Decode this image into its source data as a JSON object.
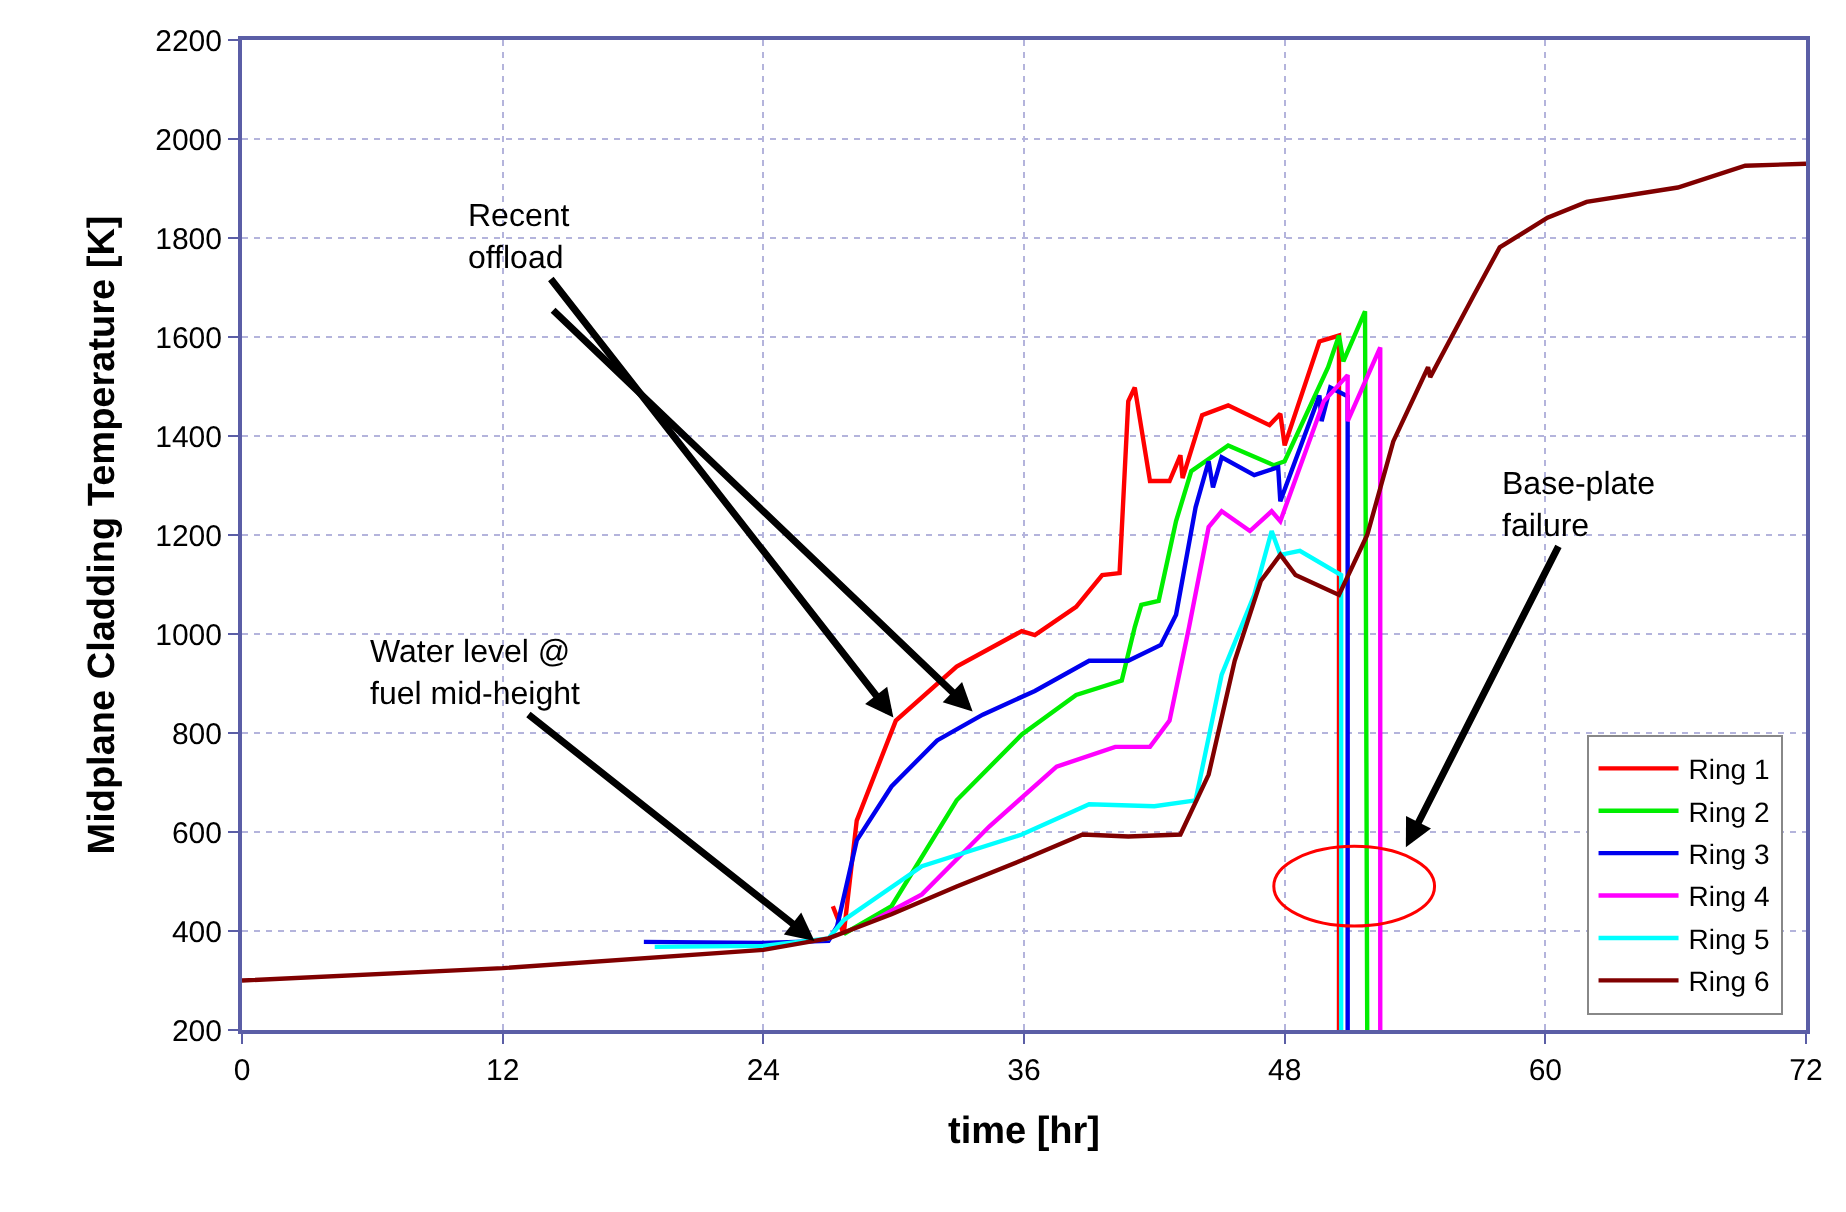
{
  "chart_data": {
    "type": "line",
    "xlabel": "time [hr]",
    "ylabel": "Midplane Cladding Temperature [K]",
    "xlim": [
      0,
      72
    ],
    "xticks": [
      0,
      12,
      24,
      36,
      48,
      60,
      72
    ],
    "ylim": [
      200,
      2200
    ],
    "yticks": [
      200,
      400,
      600,
      800,
      1000,
      1200,
      1400,
      1600,
      1800,
      2000,
      2200
    ],
    "grid": true,
    "legend": "bottom right",
    "line_style": "solid",
    "marker": "none",
    "series": [
      {
        "name": "Ring 1",
        "color": "#ff0000",
        "x": [
          27.2,
          27.7,
          28.3,
          30.1,
          32.9,
          35.9,
          36.5,
          38.4,
          39.6,
          40.4,
          40.8,
          41.1,
          41.8,
          42.7,
          43.2,
          43.3,
          44.2,
          45.4,
          47.3,
          47.8,
          48.0,
          49.6,
          50.5,
          50.5
        ],
        "values": [
          450,
          394,
          623,
          825,
          934,
          1006,
          998,
          1055,
          1119,
          1123,
          1470,
          1498,
          1309,
          1309,
          1361,
          1315,
          1442,
          1462,
          1422,
          1445,
          1381,
          1591,
          1603,
          200
        ]
      },
      {
        "name": "Ring 2",
        "color": "#00ee00",
        "x": [
          27.7,
          29.9,
          32.9,
          35.9,
          38.4,
          40.5,
          41.1,
          41.4,
          42.2,
          43.0,
          43.7,
          45.4,
          47.5,
          48.0,
          50.0,
          50.5,
          50.7,
          51.7,
          51.8
        ],
        "values": [
          394,
          450,
          664,
          797,
          877,
          906,
          1014,
          1059,
          1067,
          1228,
          1329,
          1381,
          1341,
          1349,
          1539,
          1603,
          1551,
          1652,
          200
        ]
      },
      {
        "name": "Ring 3",
        "color": "#0000ee",
        "x": [
          18.5,
          24,
          27,
          27.4,
          28.3,
          29.9,
          32.0,
          34.1,
          36.5,
          39.0,
          40.8,
          42.3,
          43.0,
          43.9,
          44.5,
          44.7,
          45.1,
          46.6,
          47.7,
          47.8,
          49.6,
          49.7,
          50.1,
          50.9,
          50.9
        ],
        "values": [
          378,
          376,
          380,
          410,
          583,
          692,
          785,
          837,
          885,
          946,
          946,
          978,
          1039,
          1256,
          1349,
          1296,
          1357,
          1321,
          1337,
          1268,
          1482,
          1430,
          1498,
          1480,
          200
        ]
      },
      {
        "name": "Ring 4",
        "color": "#ff00ff",
        "x": [
          29.0,
          31.3,
          34.4,
          37.5,
          40.2,
          41.8,
          42.7,
          43.6,
          44.5,
          45.1,
          46.4,
          47.4,
          47.8,
          49.8,
          50.9,
          50.9,
          52.4,
          52.4
        ],
        "values": [
          420,
          474,
          611,
          732,
          772,
          772,
          825,
          1014,
          1216,
          1248,
          1208,
          1248,
          1228,
          1470,
          1523,
          1430,
          1579,
          200
        ]
      },
      {
        "name": "Ring 5",
        "color": "#00ffff",
        "x": [
          19,
          24,
          27,
          27.7,
          31.3,
          35.9,
          39.0,
          42.0,
          43.9,
          45.1,
          46.6,
          47.4,
          47.8,
          48.7,
          50.6,
          50.6
        ],
        "values": [
          368,
          370,
          385,
          422,
          531,
          595,
          656,
          652,
          664,
          918,
          1079,
          1208,
          1160,
          1168,
          1119,
          200
        ]
      },
      {
        "name": "Ring 6",
        "color": "#800000",
        "x": [
          0,
          12,
          24,
          27,
          29.9,
          32.9,
          35.9,
          38.7,
          40.8,
          43.2,
          44.5,
          45.7,
          46.9,
          47.8,
          48.5,
          50.5,
          51.8,
          53.0,
          54.6,
          54.7,
          56.7,
          57.9,
          60.1,
          61.9,
          66.1,
          69.2,
          72
        ],
        "values": [
          300,
          325,
          362,
          385,
          434,
          490,
          543,
          595,
          591,
          595,
          716,
          946,
          1107,
          1160,
          1119,
          1079,
          1200,
          1389,
          1539,
          1519,
          1684,
          1781,
          1841,
          1873,
          1902,
          1946,
          1950
        ]
      }
    ],
    "annotations": [
      {
        "text": "Recent\noffload",
        "x": 30.1,
        "y": 825
      },
      {
        "text": "Water level @\nfuel mid-height",
        "x": 26.5,
        "y": 375
      },
      "Base-plate\nfailure"
    ]
  }
}
